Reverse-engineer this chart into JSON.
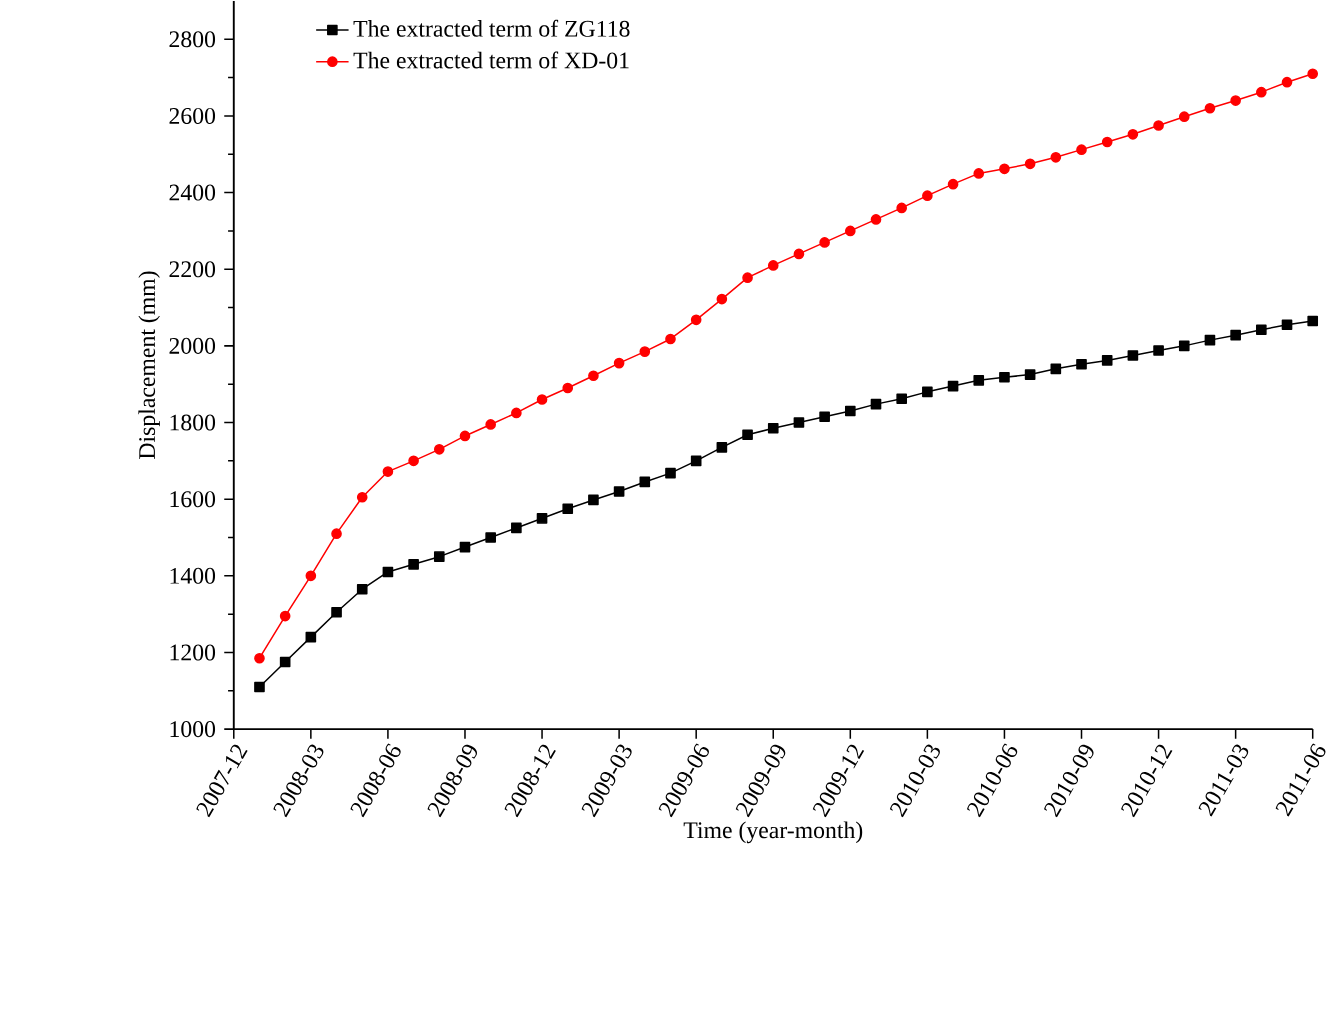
{
  "chart_data": {
    "type": "line",
    "xlabel": "Time (year-month)",
    "ylabel": "Displacement (mm)",
    "x": [
      "2008-01",
      "2008-02",
      "2008-03",
      "2008-04",
      "2008-05",
      "2008-06",
      "2008-07",
      "2008-08",
      "2008-09",
      "2008-10",
      "2008-11",
      "2008-12",
      "2009-01",
      "2009-02",
      "2009-03",
      "2009-04",
      "2009-05",
      "2009-06",
      "2009-07",
      "2009-08",
      "2009-09",
      "2009-10",
      "2009-11",
      "2009-12",
      "2010-01",
      "2010-02",
      "2010-03",
      "2010-04",
      "2010-05",
      "2010-06",
      "2010-07",
      "2010-08",
      "2010-09",
      "2010-10",
      "2010-11",
      "2010-12",
      "2011-01",
      "2011-02",
      "2011-03",
      "2011-04",
      "2011-05",
      "2011-06"
    ],
    "series": [
      {
        "name": "The extracted term of ZG118",
        "color": "#000000",
        "marker": "square",
        "values": [
          1110,
          1175,
          1240,
          1305,
          1365,
          1410,
          1430,
          1450,
          1475,
          1500,
          1525,
          1550,
          1575,
          1598,
          1620,
          1645,
          1668,
          1700,
          1735,
          1768,
          1785,
          1800,
          1815,
          1830,
          1848,
          1862,
          1880,
          1895,
          1910,
          1918,
          1925,
          1940,
          1952,
          1962,
          1975,
          1988,
          2000,
          2015,
          2028,
          2042,
          2055,
          2065
        ]
      },
      {
        "name": "The extracted term of XD-01",
        "color": "#ff0000",
        "marker": "circle",
        "values": [
          1185,
          1295,
          1400,
          1510,
          1605,
          1672,
          1700,
          1730,
          1765,
          1795,
          1825,
          1860,
          1890,
          1922,
          1955,
          1985,
          2018,
          2068,
          2122,
          2178,
          2210,
          2240,
          2270,
          2300,
          2330,
          2360,
          2392,
          2422,
          2450,
          2462,
          2475,
          2492,
          2512,
          2532,
          2552,
          2575,
          2598,
          2620,
          2640,
          2662,
          2688,
          2710
        ]
      }
    ],
    "xlim": [
      "2007-12",
      "2011-06"
    ],
    "xticks": [
      "2007-12",
      "2008-03",
      "2008-06",
      "2008-09",
      "2008-12",
      "2009-03",
      "2009-06",
      "2009-09",
      "2009-12",
      "2010-03",
      "2010-06",
      "2010-09",
      "2010-12",
      "2011-03",
      "2011-06"
    ],
    "ylim": [
      1000,
      2900
    ],
    "yticks": [
      1000,
      1200,
      1400,
      1600,
      1800,
      2000,
      2200,
      2400,
      2600,
      2800
    ],
    "legend": "top left",
    "grid": false,
    "line_style": "solid"
  }
}
